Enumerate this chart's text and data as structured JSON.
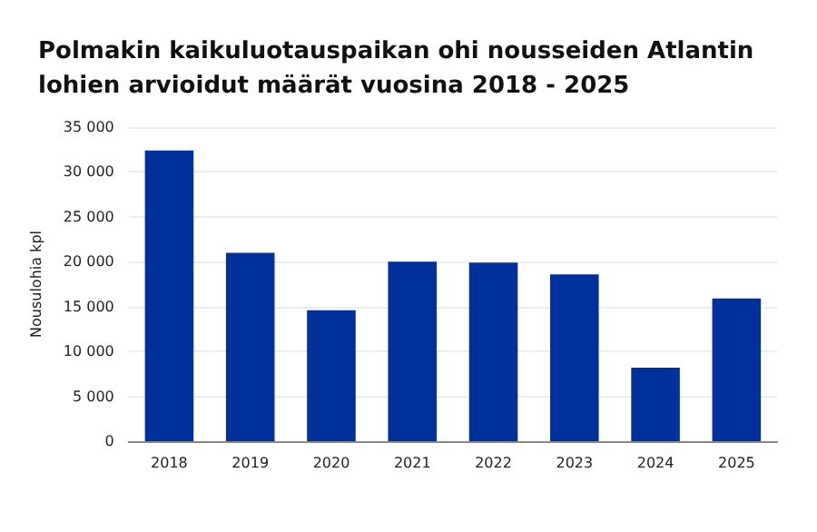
{
  "chart_data": {
    "type": "bar",
    "title": "Polmakin kaikuluotauspaikan ohi nousseiden Atlantin lohien arvioidut määrät vuosina 2018 - 2025",
    "ylabel": "Nousulohia kpl",
    "categories": [
      "2018",
      "2019",
      "2020",
      "2021",
      "2022",
      "2023",
      "2024",
      "2025"
    ],
    "values": [
      32400,
      21000,
      14600,
      20000,
      19900,
      18600,
      8200,
      15900
    ],
    "color": "#00309a",
    "ylim": [
      0,
      35000
    ],
    "yticks": [
      {
        "value": 0,
        "label": "0"
      },
      {
        "value": 5000,
        "label": "5 000"
      },
      {
        "value": 10000,
        "label": "10 000"
      },
      {
        "value": 15000,
        "label": "15 000"
      },
      {
        "value": 20000,
        "label": "20 000"
      },
      {
        "value": 25000,
        "label": "25 000"
      },
      {
        "value": 30000,
        "label": "30 000"
      },
      {
        "value": 35000,
        "label": "35 000"
      }
    ],
    "grid": "y"
  }
}
